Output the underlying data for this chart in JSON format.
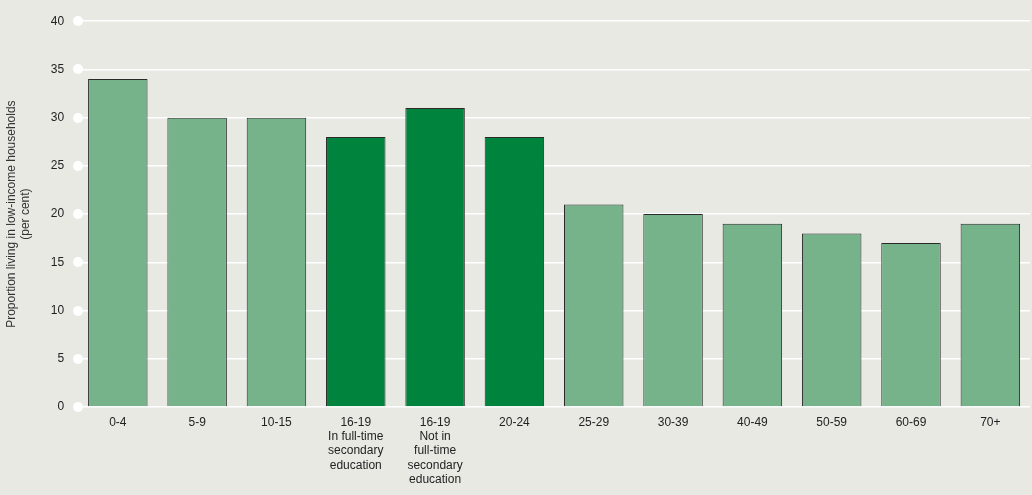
{
  "chart_data": {
    "type": "bar",
    "ylabel": "Proportion living in low-income households\n(per cent)",
    "categories": [
      "0-4",
      "5-9",
      "10-15",
      "16-19\nIn full-time\nsecondary\neducation",
      "16-19\nNot in\nfull-time\nsecondary\neducation",
      "20-24",
      "25-29",
      "30-39",
      "40-49",
      "50-59",
      "60-69",
      "70+"
    ],
    "values": [
      34,
      30,
      30,
      28,
      31,
      28,
      21,
      20,
      19,
      18,
      17,
      19
    ],
    "colors": [
      "#76b38a",
      "#76b38a",
      "#76b38a",
      "#00843d",
      "#00843d",
      "#00843d",
      "#76b38a",
      "#76b38a",
      "#76b38a",
      "#76b38a",
      "#76b38a",
      "#76b38a"
    ],
    "ylim": [
      0,
      40
    ],
    "yticks": [
      0,
      5,
      10,
      15,
      20,
      25,
      30,
      35,
      40
    ],
    "grid": "y"
  }
}
